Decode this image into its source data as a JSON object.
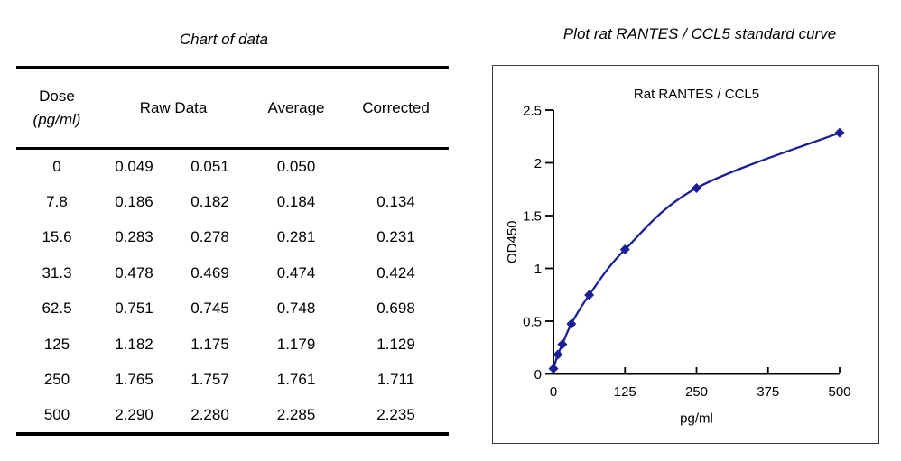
{
  "table": {
    "title": "Chart of data",
    "header": {
      "dose_line1": "Dose",
      "dose_line2": "(pg/ml)",
      "raw": "Raw Data",
      "average": "Average",
      "corrected": "Corrected"
    },
    "rows": [
      {
        "dose": "0",
        "raw1": "0.049",
        "raw2": "0.051",
        "average": "0.050",
        "corrected": ""
      },
      {
        "dose": "7.8",
        "raw1": "0.186",
        "raw2": "0.182",
        "average": "0.184",
        "corrected": "0.134"
      },
      {
        "dose": "15.6",
        "raw1": "0.283",
        "raw2": "0.278",
        "average": "0.281",
        "corrected": "0.231"
      },
      {
        "dose": "31.3",
        "raw1": "0.478",
        "raw2": "0.469",
        "average": "0.474",
        "corrected": "0.424"
      },
      {
        "dose": "62.5",
        "raw1": "0.751",
        "raw2": "0.745",
        "average": "0.748",
        "corrected": "0.698"
      },
      {
        "dose": "125",
        "raw1": "1.182",
        "raw2": "1.175",
        "average": "1.179",
        "corrected": "1.129"
      },
      {
        "dose": "250",
        "raw1": "1.765",
        "raw2": "1.757",
        "average": "1.761",
        "corrected": "1.711"
      },
      {
        "dose": "500",
        "raw1": "2.290",
        "raw2": "2.280",
        "average": "2.285",
        "corrected": "2.235"
      }
    ]
  },
  "plot_section": {
    "title": "Plot rat RANTES / CCL5 standard curve"
  },
  "chart_data": {
    "type": "line",
    "title": "Rat  RANTES / CCL5",
    "xlabel": "pg/ml",
    "ylabel": "OD450",
    "x": [
      0,
      7.8,
      15.6,
      31.3,
      62.5,
      125,
      250,
      500
    ],
    "y": [
      0.05,
      0.184,
      0.281,
      0.474,
      0.748,
      1.179,
      1.761,
      2.285
    ],
    "xlim": [
      0,
      500
    ],
    "ylim": [
      0,
      2.5
    ],
    "xticks": [
      0,
      125,
      250,
      375,
      500
    ],
    "yticks": [
      0,
      0.5,
      1,
      1.5,
      2,
      2.5
    ],
    "grid": false,
    "legend": "none",
    "line_color": "#1c1f96",
    "axis_color": "#000000",
    "marker": "diamond"
  }
}
